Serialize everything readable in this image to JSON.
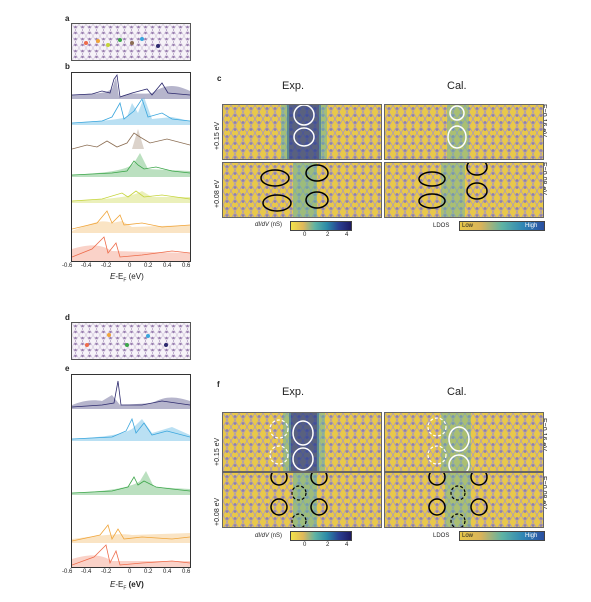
{
  "panel_labels": {
    "a": "a",
    "b": "b",
    "c": "c",
    "d": "d",
    "e": "e",
    "f": "f"
  },
  "colors": {
    "navy": "#2d2a6e",
    "lightblue": "#3aa6dd",
    "tan": "#8b6d52",
    "green": "#3ca64a",
    "yellowgreen": "#c5d43a",
    "orange": "#f0a53a",
    "salmon": "#ee6b4a"
  },
  "spectra": {
    "x_ticks": [
      "-0.6",
      "-0.4",
      "-0.2",
      "0",
      "0.2",
      "0.4",
      "0.6"
    ],
    "xlabel_prefix": "E",
    "xlabel_mid": "-E",
    "xlabel_sub": "F",
    "xlabel_unit": " (eV)",
    "xlabel_unit_bold": " (eV)"
  },
  "column_titles": {
    "exp": "Exp.",
    "cal": "Cal."
  },
  "row_labels": {
    "top_left": "+0.15 eV",
    "bottom_left": "+0.08 eV",
    "top_right": "E=0.16 eV",
    "bottom_right": "E=0.08 eV"
  },
  "colorbar_exp": {
    "label": "dI/dV",
    "unit": "(nS)",
    "ticks": [
      "0",
      "2",
      "4"
    ]
  },
  "colorbar_cal": {
    "label": "LDOS",
    "low": "Low",
    "high": "High"
  }
}
